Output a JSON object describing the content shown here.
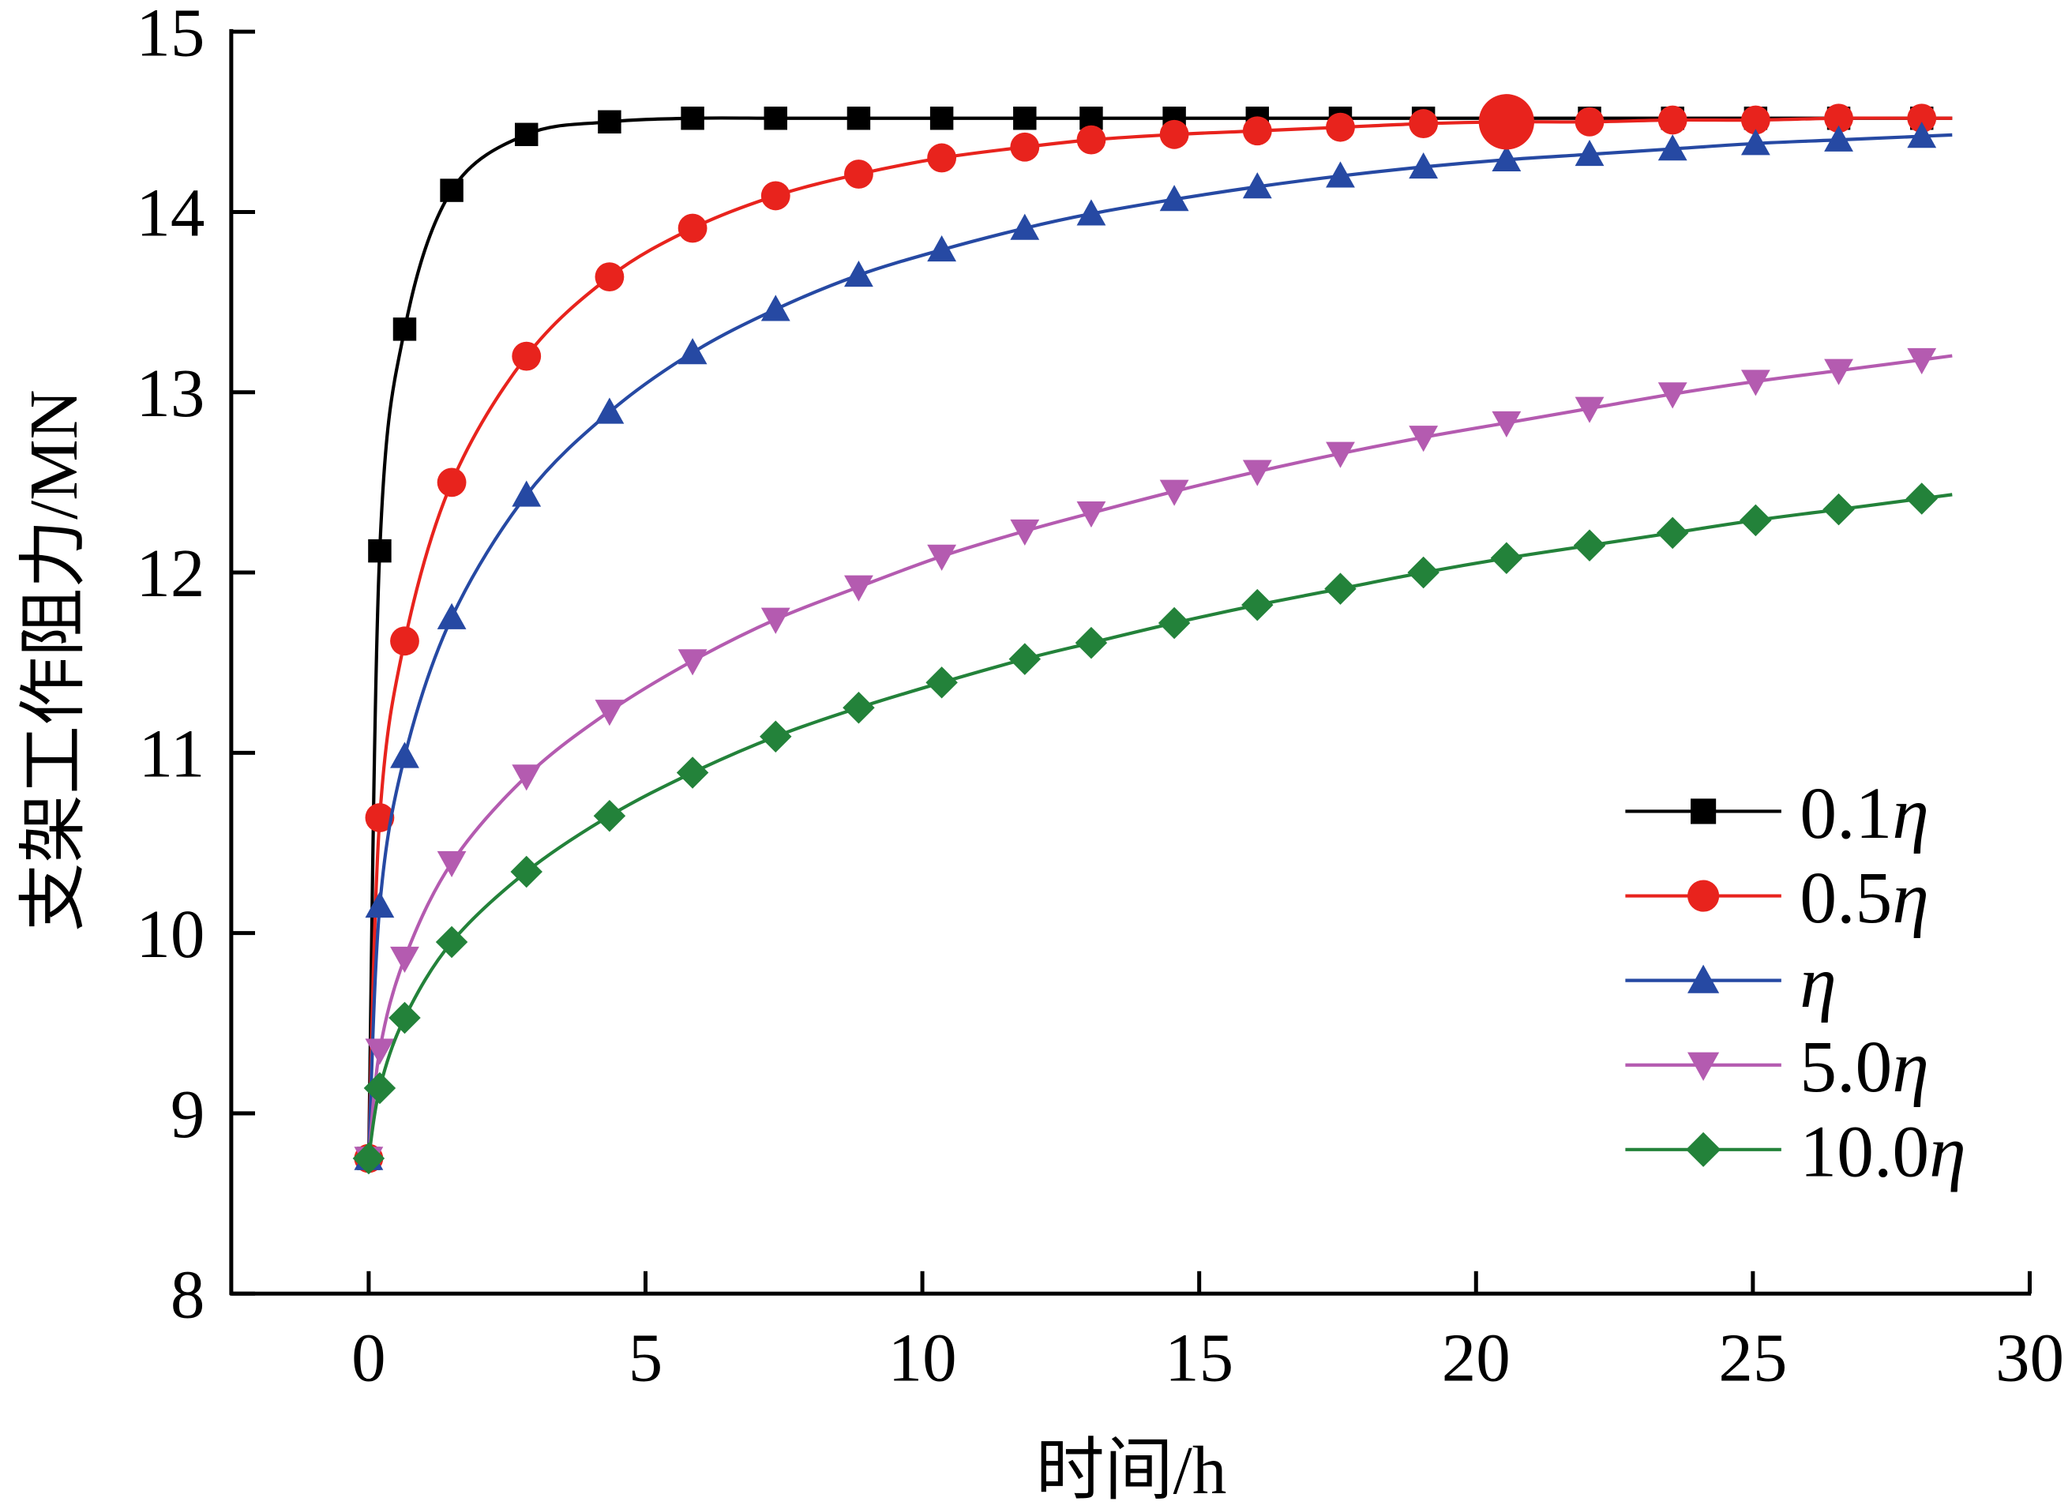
{
  "chart_data": {
    "type": "line",
    "title": "",
    "xlabel": "时间/h",
    "ylabel": "支架工作阻力/MN",
    "xlim": [
      -2.5,
      30
    ],
    "ylim": [
      8,
      15
    ],
    "xticks": [
      0,
      5,
      10,
      15,
      20,
      25,
      30
    ],
    "yticks": [
      8,
      9,
      10,
      11,
      12,
      13,
      14,
      15
    ],
    "grid": false,
    "legend_position": "bottom-right",
    "x": [
      0,
      0.2,
      0.65,
      1.5,
      2.85,
      4.35,
      5.85,
      7.35,
      8.85,
      10.35,
      11.85,
      13.05,
      14.55,
      16.05,
      17.55,
      19.05,
      20.55,
      22.05,
      23.55,
      25.05,
      26.55,
      28.05
    ],
    "series": [
      {
        "coef": "0.1",
        "symbol": "η",
        "color": "#000000",
        "marker": "square",
        "values": [
          8.75,
          12.12,
          13.35,
          14.12,
          14.43,
          14.5,
          14.52,
          14.52,
          14.52,
          14.52,
          14.52,
          14.52,
          14.52,
          14.52,
          14.52,
          14.52,
          14.52,
          14.52,
          14.52,
          14.52,
          14.52,
          14.52
        ]
      },
      {
        "coef": "0.5",
        "symbol": "η",
        "color": "#e8231d",
        "marker": "circle",
        "values": [
          8.75,
          10.64,
          11.62,
          12.5,
          13.2,
          13.64,
          13.91,
          14.09,
          14.21,
          14.3,
          14.36,
          14.4,
          14.43,
          14.45,
          14.47,
          14.49,
          14.5,
          14.5,
          14.51,
          14.51,
          14.52,
          14.52
        ]
      },
      {
        "coef": "",
        "symbol": "η",
        "color": "#2649a3",
        "marker": "triangle-up",
        "values": [
          8.75,
          10.15,
          10.98,
          11.75,
          12.43,
          12.89,
          13.22,
          13.46,
          13.65,
          13.79,
          13.91,
          13.99,
          14.07,
          14.14,
          14.2,
          14.25,
          14.29,
          14.32,
          14.35,
          14.38,
          14.4,
          14.42
        ]
      },
      {
        "coef": "5.0",
        "symbol": "η",
        "color": "#b45bb0",
        "marker": "triangle-down",
        "values": [
          8.75,
          9.35,
          9.86,
          10.39,
          10.87,
          11.23,
          11.51,
          11.74,
          11.92,
          12.09,
          12.23,
          12.33,
          12.45,
          12.56,
          12.66,
          12.75,
          12.83,
          12.91,
          12.99,
          13.06,
          13.12,
          13.18
        ]
      },
      {
        "coef": "10.0",
        "symbol": "η",
        "color": "#23823a",
        "marker": "diamond",
        "values": [
          8.75,
          9.14,
          9.53,
          9.95,
          10.34,
          10.65,
          10.89,
          11.09,
          11.25,
          11.39,
          11.52,
          11.61,
          11.72,
          11.82,
          11.91,
          12.0,
          12.08,
          12.15,
          12.22,
          12.29,
          12.35,
          12.41
        ]
      }
    ],
    "annotations": [
      {
        "type": "highlight-point",
        "series": "0.5η",
        "x": 20.55,
        "y": 14.5
      }
    ]
  }
}
